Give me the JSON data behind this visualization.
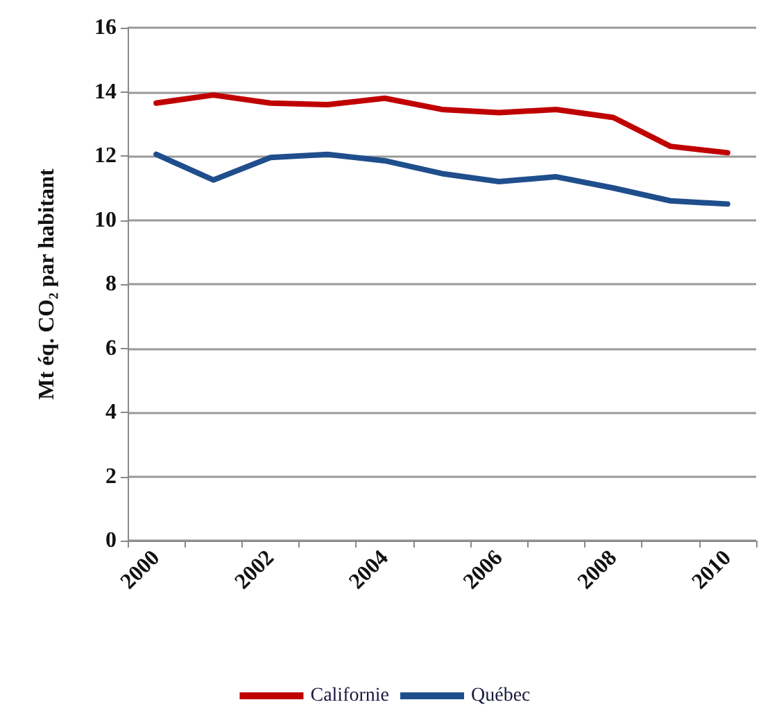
{
  "chart_data": {
    "type": "line",
    "ylabel": "Mt éq. CO₂ par habitant",
    "categories": [
      "2000",
      null,
      "2002",
      null,
      "2004",
      null,
      "2006",
      null,
      "2008",
      null,
      "2010"
    ],
    "series": [
      {
        "name": "Californie",
        "color": "#c00000",
        "values": [
          13.65,
          13.9,
          13.65,
          13.6,
          13.8,
          13.45,
          13.35,
          13.45,
          13.2,
          12.3,
          12.1
        ]
      },
      {
        "name": "Québec",
        "color": "#1f4e8c",
        "values": [
          12.05,
          11.25,
          11.95,
          12.05,
          11.85,
          11.45,
          11.2,
          11.35,
          11.0,
          10.6,
          10.5
        ]
      }
    ],
    "ylim": [
      0,
      16
    ],
    "yticks": [
      0,
      2,
      4,
      6,
      8,
      10,
      12,
      14,
      16
    ],
    "grid": "y",
    "legend": "bottom",
    "marker": "none",
    "line_style": "solid"
  }
}
